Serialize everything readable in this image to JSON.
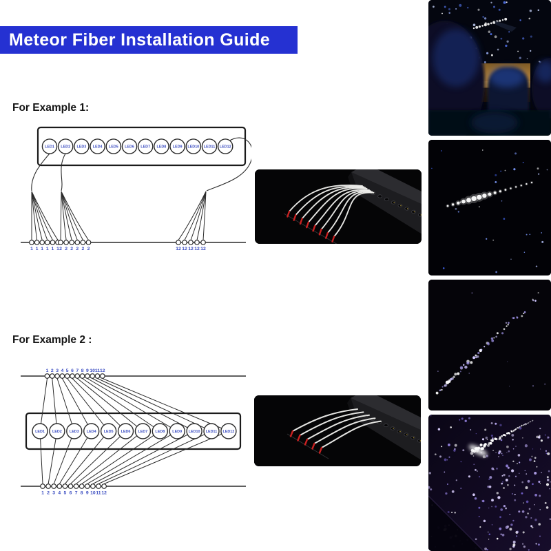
{
  "banner": {
    "title": "Meteor Fiber Installation Guide"
  },
  "colors": {
    "banner_blue": "#2531d2",
    "banner_text": "#ffffff",
    "label_blue": "#3c4ec2",
    "line_ink": "#2a2a2a",
    "fiber_tip_red": "#c92121"
  },
  "example1": {
    "label": "For Example 1:",
    "led_labels": [
      "LED1",
      "LED2",
      "LED3",
      "LED4",
      "LED5",
      "LED6",
      "LED7",
      "LED8",
      "LED9",
      "LED10",
      "LED11",
      "LED12"
    ],
    "fiber_groups": [
      {
        "source_led": "LED1",
        "port_labels": [
          "1",
          "1",
          "1",
          "1",
          "1",
          "1"
        ]
      },
      {
        "source_led": "LED2",
        "port_labels": [
          "2",
          "2",
          "2",
          "2",
          "2",
          "2"
        ]
      },
      {
        "source_led": "LED12",
        "port_labels": [
          "12",
          "12",
          "12",
          "12",
          "12"
        ]
      }
    ]
  },
  "example2": {
    "label": "For Example 2 :",
    "led_labels": [
      "LED1",
      "LED2",
      "LED3",
      "LED4",
      "LED5",
      "LED6",
      "LED7",
      "LED8",
      "LED9",
      "LED10",
      "LED11",
      "LED12"
    ],
    "top_labels": [
      "1",
      "2",
      "3",
      "4",
      "5",
      "6",
      "7",
      "8",
      "9",
      "10",
      "11",
      "12"
    ],
    "bottom_labels": [
      "1",
      "2",
      "3",
      "4",
      "5",
      "6",
      "7",
      "8",
      "9",
      "10",
      "11",
      "12"
    ]
  },
  "photos": {
    "example1_photo": "fiber-optic-bundle-with-led-engine",
    "example2_photo": "fiber-optic-bundles-with-led-engine",
    "right_column": [
      "car-starlight-headliner",
      "star-curtain-with-meteor",
      "meteor-fiber-streak",
      "starlight-ceiling-dense"
    ]
  }
}
